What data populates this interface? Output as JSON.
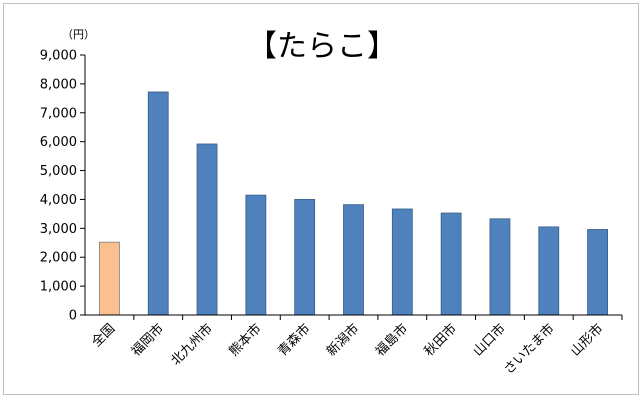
{
  "chart_data": {
    "type": "bar",
    "title": "【たらこ】",
    "unit_label": "（円）",
    "categories": [
      "全国",
      "福岡市",
      "北九州市",
      "熊本市",
      "青森市",
      "新潟市",
      "福島市",
      "秋田市",
      "山口市",
      "さいたま市",
      "山形市"
    ],
    "values": [
      2520,
      7720,
      5920,
      4150,
      4000,
      3820,
      3670,
      3530,
      3330,
      3050,
      2960
    ],
    "highlight_index": 0,
    "ylim": [
      0,
      9000
    ],
    "yticks": [
      "0",
      "1,000",
      "2,000",
      "3,000",
      "4,000",
      "5,000",
      "6,000",
      "7,000",
      "8,000",
      "9,000"
    ],
    "grid": false,
    "colors": {
      "highlight": "#fac090",
      "bar": "#4f81bd",
      "highlight_border": "#7f7f7f",
      "bar_border": "#385d8a"
    }
  }
}
